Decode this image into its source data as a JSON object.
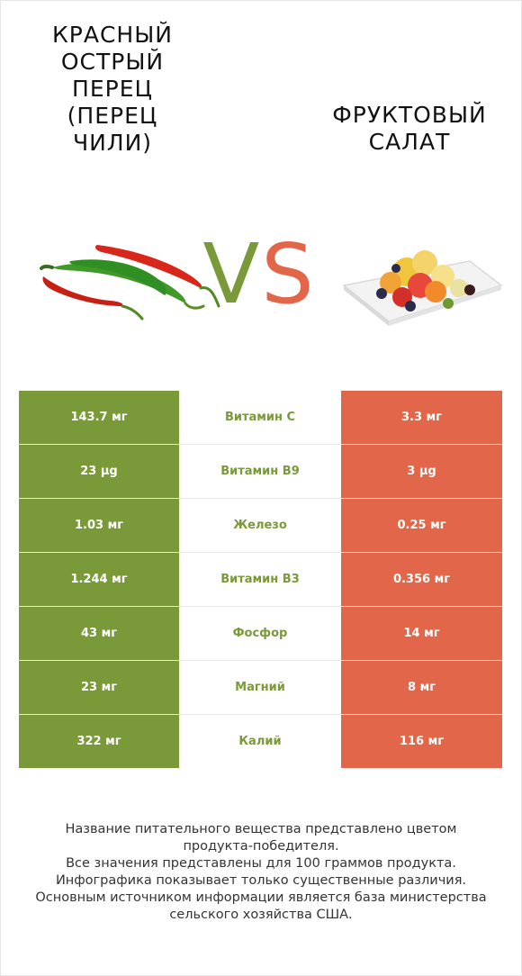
{
  "colors": {
    "winner_left": "#7a9a3a",
    "winner_right": "#e2674a"
  },
  "header": {
    "left_title": "Красный\nострый\nперец\n(перец\nчили)",
    "right_title": "Фруктовый\nсалат",
    "vs_v": "V",
    "vs_s": "S"
  },
  "images": {
    "left": "red-and-green-chili-peppers",
    "right": "fruit-salad-plate"
  },
  "rows": [
    {
      "left": "143.7 мг",
      "nutrient": "Витамин C",
      "right": "3.3 мг",
      "winner": "left"
    },
    {
      "left": "23 µg",
      "nutrient": "Витамин B9",
      "right": "3 µg",
      "winner": "left"
    },
    {
      "left": "1.03 мг",
      "nutrient": "Железо",
      "right": "0.25 мг",
      "winner": "left"
    },
    {
      "left": "1.244 мг",
      "nutrient": "Витамин B3",
      "right": "0.356 мг",
      "winner": "left"
    },
    {
      "left": "43 мг",
      "nutrient": "Фосфор",
      "right": "14 мг",
      "winner": "left"
    },
    {
      "left": "23 мг",
      "nutrient": "Магний",
      "right": "8 мг",
      "winner": "left"
    },
    {
      "left": "322 мг",
      "nutrient": "Калий",
      "right": "116 мг",
      "winner": "left"
    }
  ],
  "footer": {
    "text": "Название питательного вещества представлено цветом\nпродукта-победителя.\nВсе значения представлены для 100 граммов продукта.\nИнфографика показывает только существенные различия.\nОсновным источником информации является база министерства\nсельского хозяйства США."
  }
}
